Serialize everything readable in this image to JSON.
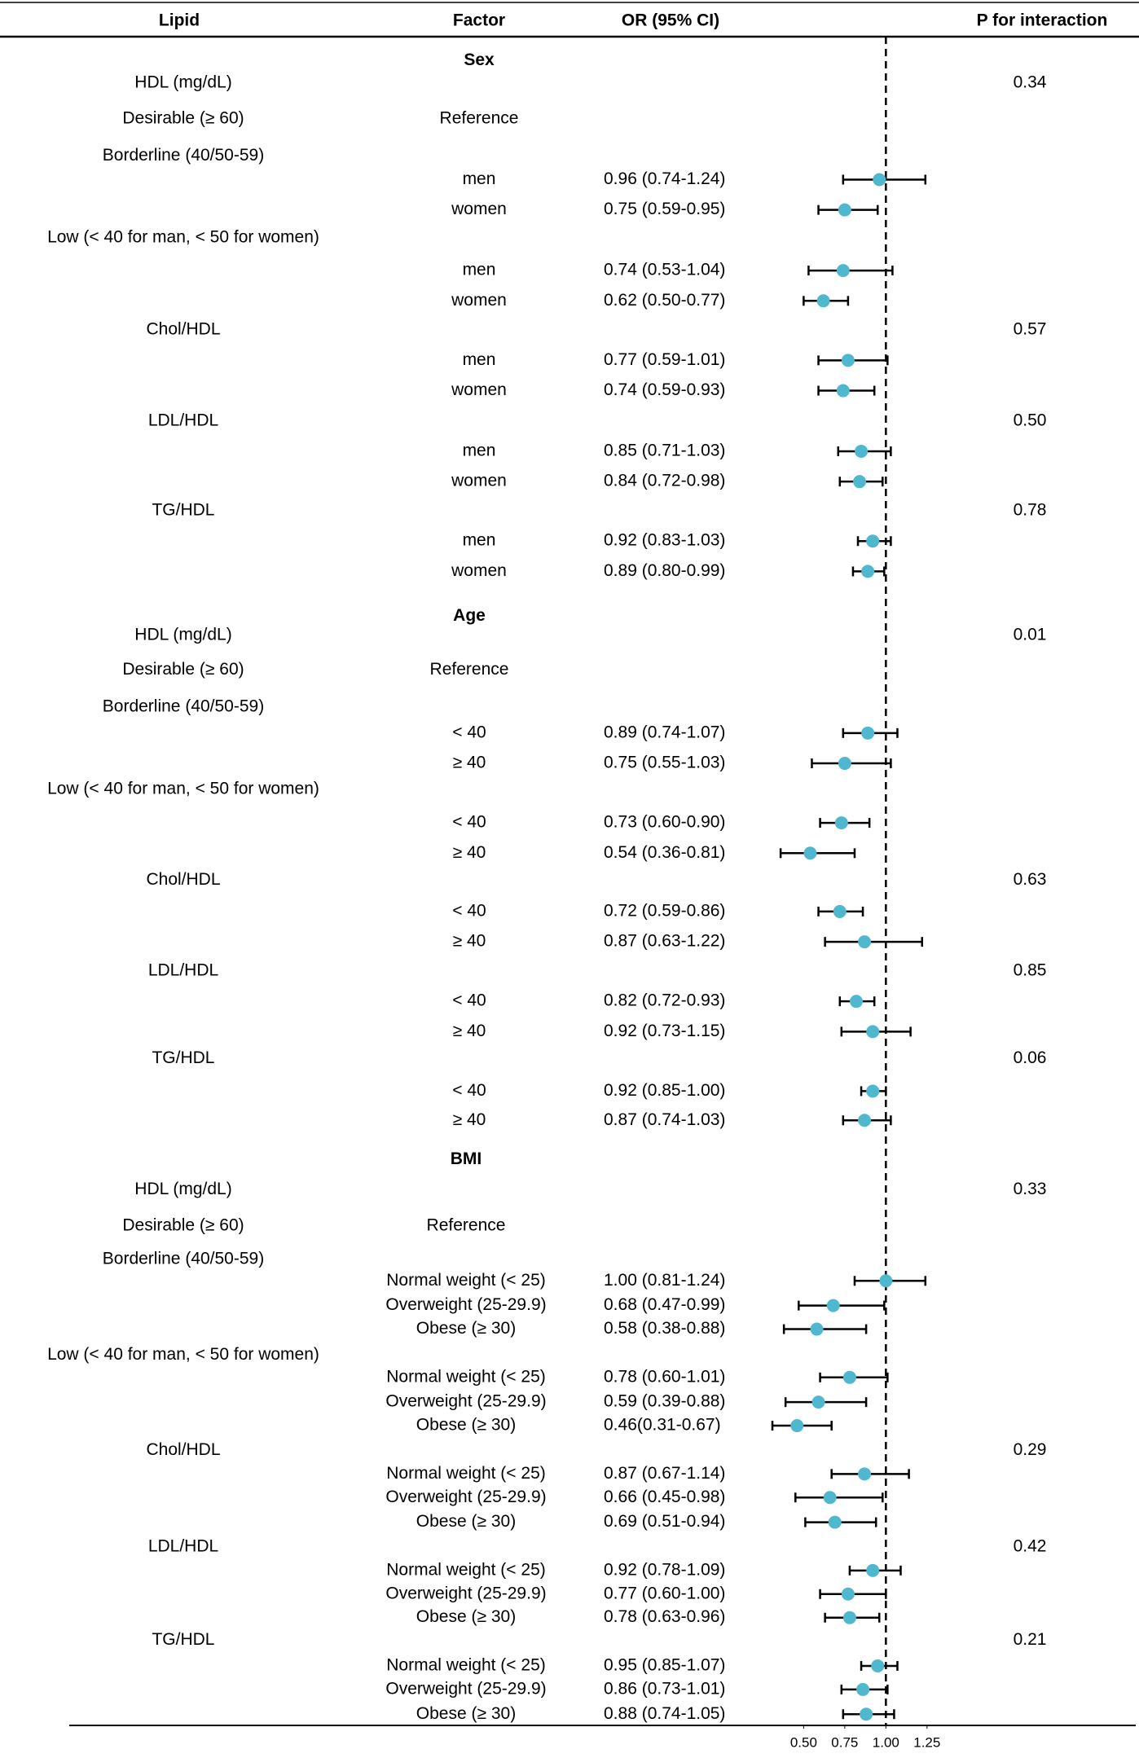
{
  "chart_data": {
    "type": "forest",
    "columns": [
      "Lipid",
      "Factor",
      "OR (95% CI)",
      "P for interaction"
    ],
    "xlim": [
      0.3,
      1.35
    ],
    "xticks": [
      {
        "value": 0.5,
        "label": "0.50"
      },
      {
        "value": 0.75,
        "label": "0.75"
      },
      {
        "value": 1,
        "label": "1.00"
      },
      {
        "value": 1.25,
        "label": "1.25"
      }
    ],
    "ref_line": 1,
    "color": "#4fb8cf",
    "sections": [
      {
        "title": "Sex",
        "rows": [
          {
            "lipid": "HDL (mg/dL)",
            "p": "0.34"
          },
          {
            "lipid": "Desirable (≥ 60)",
            "factor": "Reference"
          },
          {
            "lipid": "Borderline (40/50-59)"
          },
          {
            "factor": "men",
            "value": 0.96,
            "ci": [
              0.74,
              1.24
            ],
            "value_label": "0.96 (0.74-1.24)"
          },
          {
            "factor": "women",
            "value": 0.75,
            "ci": [
              0.59,
              0.95
            ],
            "value_label": "0.75 (0.59-0.95)"
          },
          {
            "lipid": "Low (< 40 for man, < 50 for women)"
          },
          {
            "factor": "men",
            "value": 0.74,
            "ci": [
              0.53,
              1.04
            ],
            "value_label": "0.74 (0.53-1.04)"
          },
          {
            "factor": "women",
            "value": 0.62,
            "ci": [
              0.5,
              0.77
            ],
            "value_label": "0.62 (0.50-0.77)"
          },
          {
            "lipid": "Chol/HDL",
            "p": "0.57"
          },
          {
            "factor": "men",
            "value": 0.77,
            "ci": [
              0.59,
              1.01
            ],
            "value_label": "0.77 (0.59-1.01)"
          },
          {
            "factor": "women",
            "value": 0.74,
            "ci": [
              0.59,
              0.93
            ],
            "value_label": "0.74 (0.59-0.93)"
          },
          {
            "lipid": "LDL/HDL",
            "p": "0.50"
          },
          {
            "factor": "men",
            "value": 0.85,
            "ci": [
              0.71,
              1.03
            ],
            "value_label": "0.85 (0.71-1.03)"
          },
          {
            "factor": "women",
            "value": 0.84,
            "ci": [
              0.72,
              0.98
            ],
            "value_label": "0.84 (0.72-0.98)"
          },
          {
            "lipid": "TG/HDL",
            "p": "0.78"
          },
          {
            "factor": "men",
            "value": 0.92,
            "ci": [
              0.83,
              1.03
            ],
            "value_label": "0.92 (0.83-1.03)"
          },
          {
            "factor": "women",
            "value": 0.89,
            "ci": [
              0.8,
              0.99
            ],
            "value_label": "0.89 (0.80-0.99)"
          }
        ]
      },
      {
        "title": "Age",
        "rows": [
          {
            "lipid": "HDL (mg/dL)",
            "p": "0.01"
          },
          {
            "lipid": "Desirable (≥ 60)",
            "factor": "Reference"
          },
          {
            "lipid": "Borderline (40/50-59)"
          },
          {
            "factor": "< 40",
            "value": 0.89,
            "ci": [
              0.74,
              1.07
            ],
            "value_label": "0.89 (0.74-1.07)"
          },
          {
            "factor": "≥ 40",
            "value": 0.75,
            "ci": [
              0.55,
              1.03
            ],
            "value_label": "0.75 (0.55-1.03)"
          },
          {
            "lipid": "Low (< 40 for man, < 50 for women)"
          },
          {
            "factor": "< 40",
            "value": 0.73,
            "ci": [
              0.6,
              0.9
            ],
            "value_label": "0.73 (0.60-0.90)"
          },
          {
            "factor": "≥ 40",
            "value": 0.54,
            "ci": [
              0.36,
              0.81
            ],
            "value_label": "0.54 (0.36-0.81)"
          },
          {
            "lipid": "Chol/HDL",
            "p": "0.63"
          },
          {
            "factor": "< 40",
            "value": 0.72,
            "ci": [
              0.59,
              0.86
            ],
            "value_label": "0.72 (0.59-0.86)"
          },
          {
            "factor": "≥ 40",
            "value": 0.87,
            "ci": [
              0.63,
              1.22
            ],
            "value_label": "0.87 (0.63-1.22)"
          },
          {
            "lipid": "LDL/HDL",
            "p": "0.85"
          },
          {
            "factor": "< 40",
            "value": 0.82,
            "ci": [
              0.72,
              0.93
            ],
            "value_label": "0.82 (0.72-0.93)"
          },
          {
            "factor": "≥ 40",
            "value": 0.92,
            "ci": [
              0.73,
              1.15
            ],
            "value_label": "0.92 (0.73-1.15)"
          },
          {
            "lipid": "TG/HDL",
            "p": "0.06"
          },
          {
            "factor": "< 40",
            "value": 0.92,
            "ci": [
              0.85,
              1.0
            ],
            "value_label": "0.92 (0.85-1.00)"
          },
          {
            "factor": "≥ 40",
            "value": 0.87,
            "ci": [
              0.74,
              1.03
            ],
            "value_label": "0.87 (0.74-1.03)"
          }
        ]
      },
      {
        "title": "BMI",
        "rows": [
          {
            "lipid": "HDL (mg/dL)",
            "p": "0.33"
          },
          {
            "lipid": "Desirable (≥ 60)",
            "factor": "Reference"
          },
          {
            "lipid": "Borderline (40/50-59)"
          },
          {
            "factor": "Normal weight (< 25)",
            "value": 1.0,
            "ci": [
              0.81,
              1.24
            ],
            "value_label": "1.00 (0.81-1.24)"
          },
          {
            "factor": "Overweight (25-29.9)",
            "value": 0.68,
            "ci": [
              0.47,
              0.99
            ],
            "value_label": "0.68 (0.47-0.99)"
          },
          {
            "factor": "Obese (≥ 30)",
            "value": 0.58,
            "ci": [
              0.38,
              0.88
            ],
            "value_label": "0.58 (0.38-0.88)"
          },
          {
            "lipid": "Low (< 40 for man, < 50 for women)"
          },
          {
            "factor": "Normal weight (< 25)",
            "value": 0.78,
            "ci": [
              0.6,
              1.01
            ],
            "value_label": "0.78 (0.60-1.01)"
          },
          {
            "factor": "Overweight (25-29.9)",
            "value": 0.59,
            "ci": [
              0.39,
              0.88
            ],
            "value_label": "0.59 (0.39-0.88)"
          },
          {
            "factor": "Obese (≥ 30)",
            "value": 0.46,
            "ci": [
              0.31,
              0.67
            ],
            "value_label": "0.46(0.31-0.67)"
          },
          {
            "lipid": "Chol/HDL",
            "p": "0.29"
          },
          {
            "factor": "Normal weight (< 25)",
            "value": 0.87,
            "ci": [
              0.67,
              1.14
            ],
            "value_label": "0.87 (0.67-1.14)"
          },
          {
            "factor": "Overweight (25-29.9)",
            "value": 0.66,
            "ci": [
              0.45,
              0.98
            ],
            "value_label": "0.66 (0.45-0.98)"
          },
          {
            "factor": "Obese (≥ 30)",
            "value": 0.69,
            "ci": [
              0.51,
              0.94
            ],
            "value_label": "0.69 (0.51-0.94)"
          },
          {
            "lipid": "LDL/HDL",
            "p": "0.42"
          },
          {
            "factor": "Normal weight (< 25)",
            "value": 0.92,
            "ci": [
              0.78,
              1.09
            ],
            "value_label": "0.92 (0.78-1.09)"
          },
          {
            "factor": "Overweight (25-29.9)",
            "value": 0.77,
            "ci": [
              0.6,
              1.0
            ],
            "value_label": "0.77 (0.60-1.00)"
          },
          {
            "factor": "Obese (≥ 30)",
            "value": 0.78,
            "ci": [
              0.63,
              0.96
            ],
            "value_label": "0.78 (0.63-0.96)"
          },
          {
            "lipid": "TG/HDL",
            "p": "0.21"
          },
          {
            "factor": "Normal weight (< 25)",
            "value": 0.95,
            "ci": [
              0.85,
              1.07
            ],
            "value_label": "0.95 (0.85-1.07)"
          },
          {
            "factor": "Overweight (25-29.9)",
            "value": 0.86,
            "ci": [
              0.73,
              1.01
            ],
            "value_label": "0.86 (0.73-1.01)"
          },
          {
            "factor": "Obese (≥ 30)",
            "value": 0.88,
            "ci": [
              0.74,
              1.05
            ],
            "value_label": "0.88 (0.74-1.05)"
          }
        ]
      }
    ]
  }
}
